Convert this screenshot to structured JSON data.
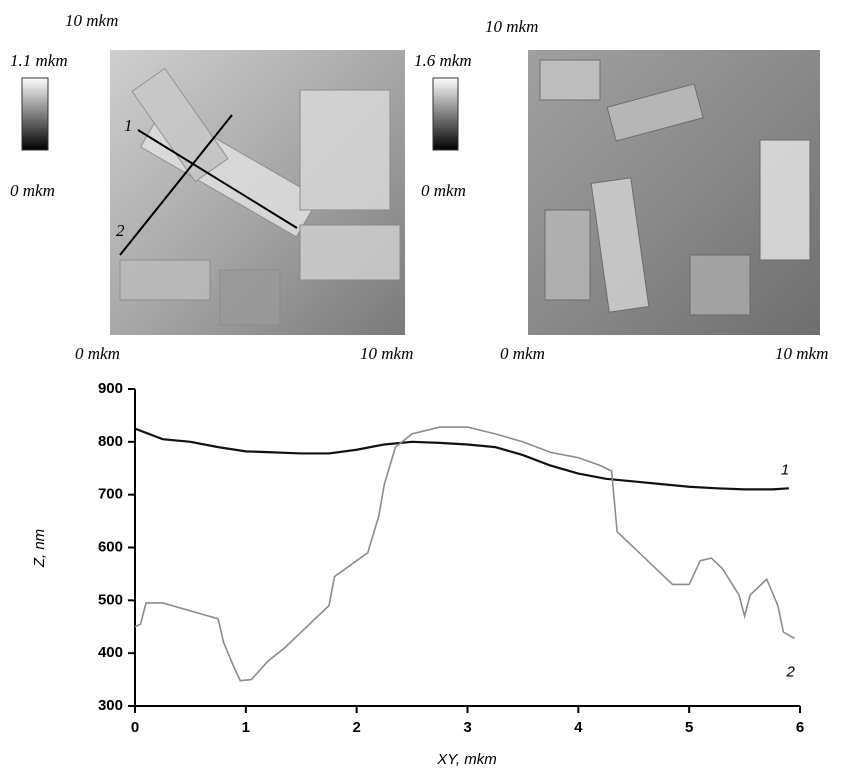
{
  "afm_images": [
    {
      "top_label": "10 mkm",
      "scale_max": "1.1 mkm",
      "scale_min": "0 mkm",
      "x_start": "0 mkm",
      "x_end": "10 mkm",
      "profile_labels": [
        "1",
        "2"
      ]
    },
    {
      "top_label": "10 mkm",
      "scale_max": "1.6 mkm",
      "scale_min": "0 mkm",
      "x_start": "0 mkm",
      "x_end": "10 mkm"
    }
  ],
  "chart_data": {
    "type": "line",
    "xlabel": "XY, mkm",
    "ylabel": "Z, nm",
    "xlim": [
      0,
      6
    ],
    "ylim": [
      300,
      900
    ],
    "xticks": [
      0,
      1,
      2,
      3,
      4,
      5,
      6
    ],
    "yticks": [
      300,
      400,
      500,
      600,
      700,
      800,
      900
    ],
    "series": [
      {
        "name": "1",
        "color": "#111111",
        "x": [
          0,
          0.25,
          0.5,
          0.75,
          1,
          1.25,
          1.5,
          1.75,
          2,
          2.25,
          2.5,
          2.75,
          3,
          3.25,
          3.5,
          3.75,
          4,
          4.25,
          4.5,
          4.75,
          5,
          5.25,
          5.5,
          5.75,
          5.9
        ],
        "values": [
          825,
          805,
          800,
          790,
          782,
          780,
          778,
          778,
          785,
          795,
          800,
          798,
          795,
          790,
          775,
          755,
          740,
          730,
          725,
          720,
          715,
          712,
          710,
          710,
          712
        ]
      },
      {
        "name": "2",
        "color": "#8c8c8c",
        "x": [
          0,
          0.05,
          0.1,
          0.25,
          0.5,
          0.75,
          0.8,
          0.9,
          0.95,
          1.05,
          1.2,
          1.35,
          1.5,
          1.6,
          1.75,
          1.8,
          2,
          2.1,
          2.2,
          2.25,
          2.35,
          2.5,
          2.75,
          3,
          3.25,
          3.5,
          3.75,
          4,
          4.2,
          4.3,
          4.35,
          4.5,
          4.75,
          4.85,
          5,
          5.1,
          5.2,
          5.3,
          5.45,
          5.5,
          5.55,
          5.7,
          5.8,
          5.85,
          5.95
        ],
        "values": [
          450,
          455,
          495,
          495,
          480,
          465,
          420,
          370,
          348,
          350,
          385,
          410,
          440,
          460,
          490,
          545,
          575,
          590,
          660,
          720,
          790,
          815,
          828,
          828,
          815,
          800,
          780,
          770,
          755,
          745,
          630,
          600,
          550,
          530,
          530,
          575,
          580,
          560,
          510,
          470,
          510,
          540,
          490,
          440,
          428
        ]
      }
    ]
  }
}
